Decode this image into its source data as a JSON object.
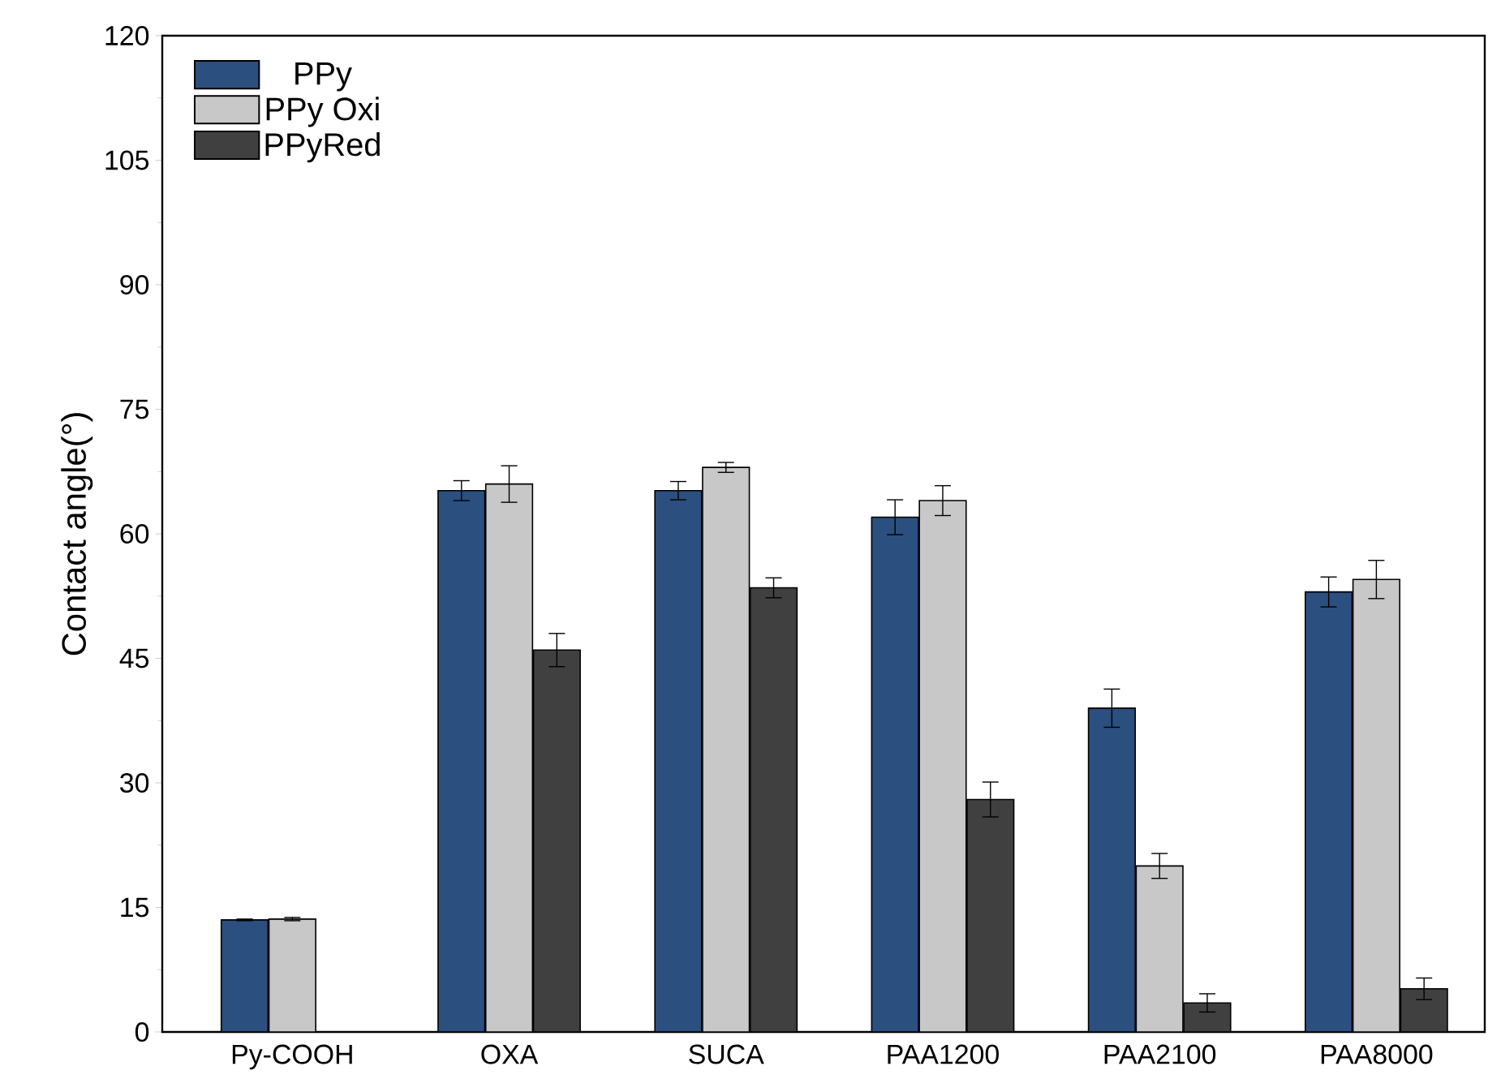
{
  "chart_data": {
    "type": "bar",
    "ylabel": "Contact angle(°)",
    "categories": [
      "Py-COOH",
      "OXA",
      "SUCA",
      "PAA1200",
      "PAA2100",
      "PAA8000"
    ],
    "series": [
      {
        "name": "PPy",
        "color": "#2b4f7e",
        "values": [
          13.5,
          65.2,
          65.2,
          62,
          39,
          53
        ],
        "errors": [
          0.1,
          1.2,
          1.1,
          2.1,
          2.3,
          1.8
        ]
      },
      {
        "name": "PPy Oxi",
        "color": "#c8c8c8",
        "values": [
          13.6,
          66,
          68,
          64,
          20,
          54.5
        ],
        "errors": [
          0.2,
          2.2,
          0.6,
          1.8,
          1.5,
          2.3
        ]
      },
      {
        "name": "PPyRed",
        "color": "#404040",
        "values": [
          null,
          46,
          53.5,
          28,
          3.5,
          5.2
        ],
        "errors": [
          null,
          2,
          1.2,
          2.1,
          1.1,
          1.3
        ]
      }
    ],
    "ylim": [
      0,
      120
    ],
    "yticks": [
      0,
      15,
      30,
      45,
      60,
      75,
      90,
      105,
      120
    ],
    "legend": "top left"
  }
}
